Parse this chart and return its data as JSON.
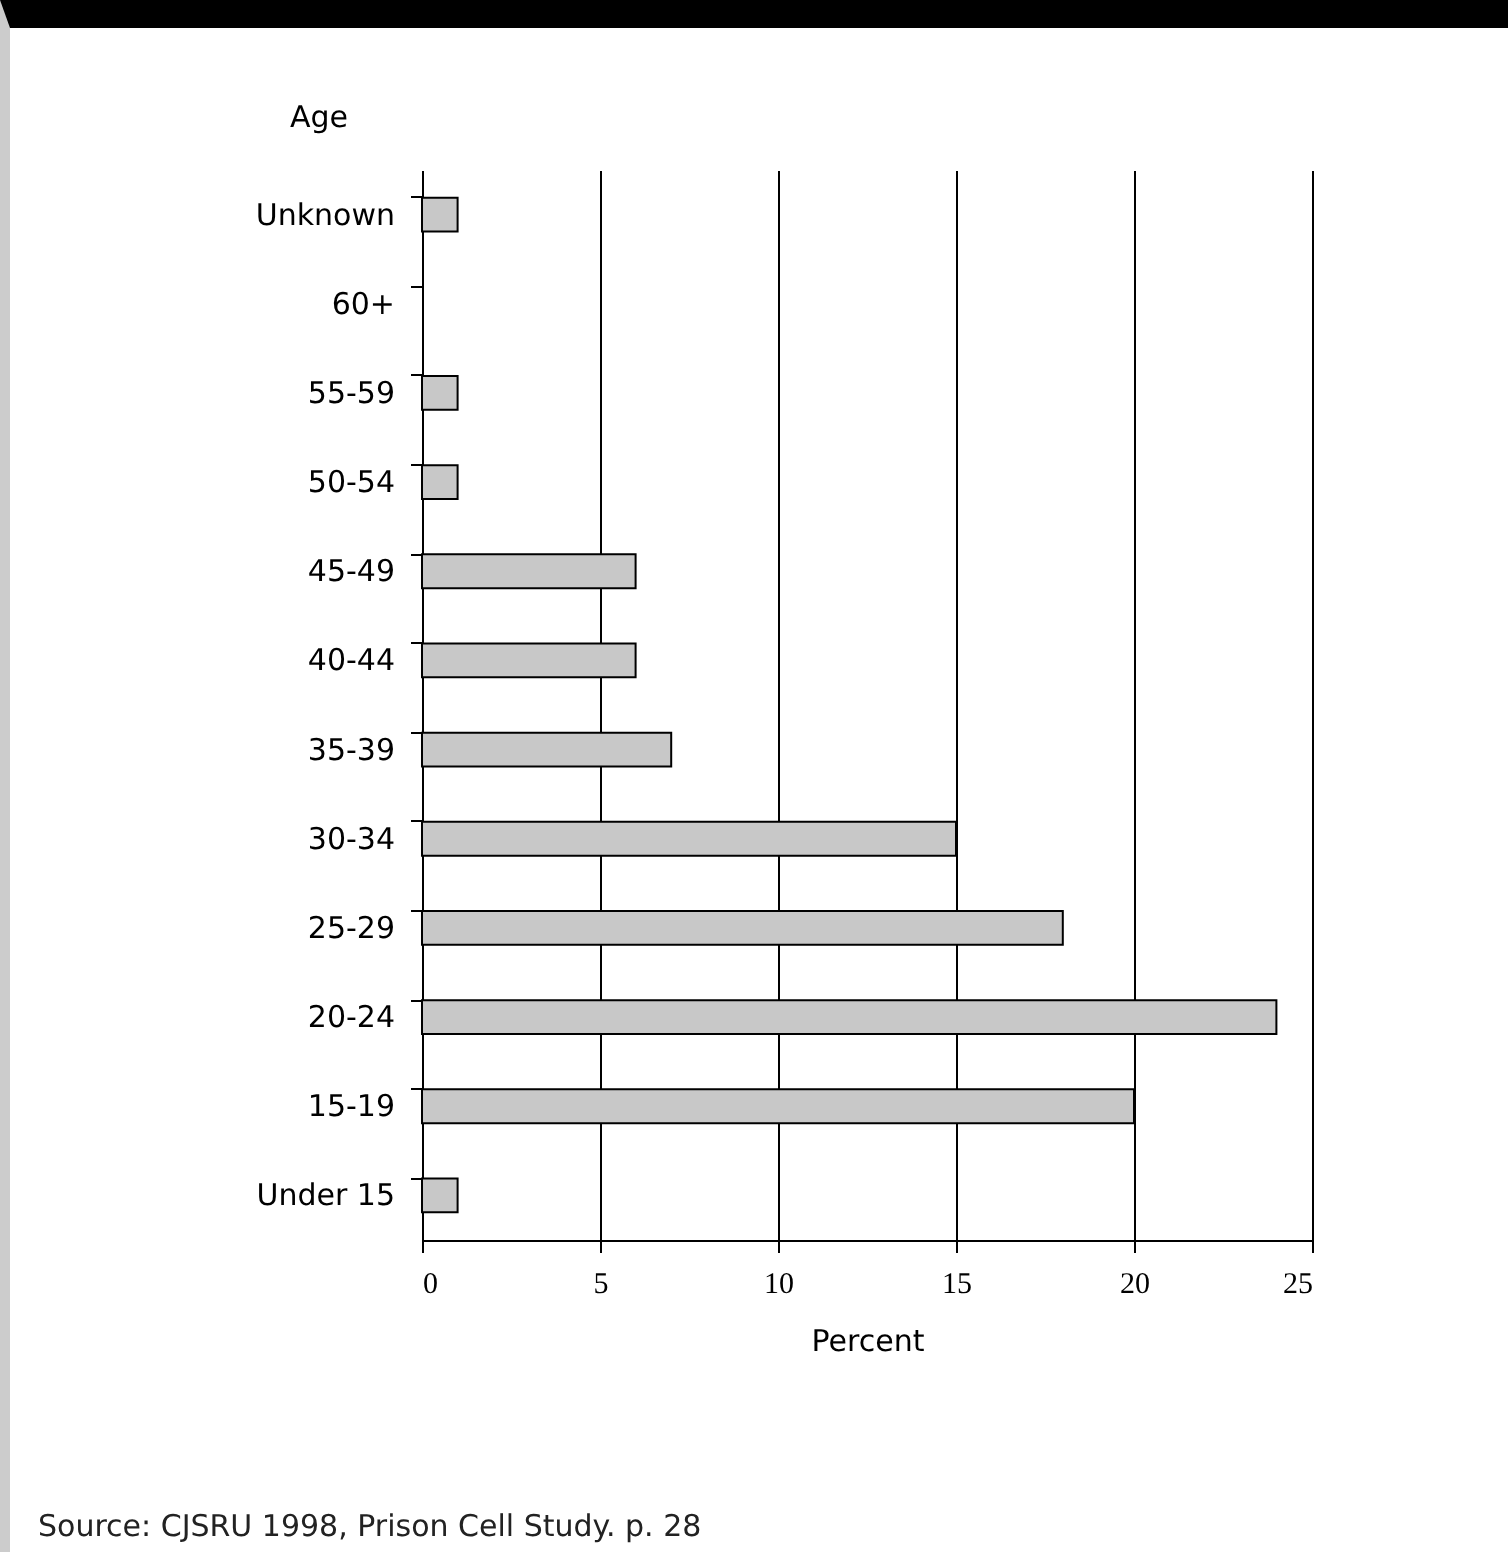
{
  "chart_data": {
    "type": "bar",
    "orientation": "horizontal",
    "ylabel": "Age",
    "xlabel": "Percent",
    "categories": [
      "Unknown",
      "60+",
      "55-59",
      "50-54",
      "45-49",
      "40-44",
      "35-39",
      "30-34",
      "25-29",
      "20-24",
      "15-19",
      "Under 15"
    ],
    "values": [
      1,
      0,
      1,
      1,
      6,
      6,
      7,
      15,
      18,
      24,
      20,
      1
    ],
    "color": "#c8c8c8",
    "xlim": [
      0,
      25
    ],
    "xticks": [
      0,
      5,
      10,
      15,
      20,
      25
    ],
    "grid": "x",
    "annotations": [
      "Source: CJSRU 1998, Prison Cell Study. p. 28"
    ]
  }
}
